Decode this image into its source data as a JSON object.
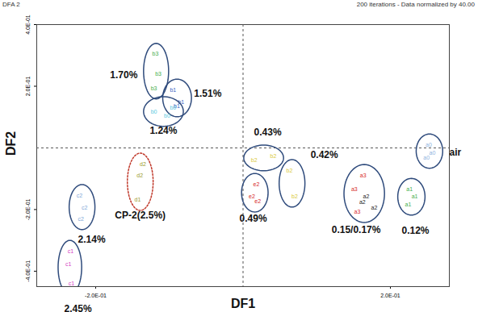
{
  "chart_data": {
    "type": "scatter",
    "title": "DFA 2",
    "subtitle": "200 iterations - Data normalized by 40.00",
    "x_label": "DF1",
    "y_label": "DF2",
    "xlim": [
      -0.28,
      0.28
    ],
    "ylim": [
      -0.45,
      0.4
    ],
    "xticks": [
      {
        "value": -0.2,
        "label": "-2.0E-01"
      },
      {
        "value": 0.2,
        "label": "2.0E-01"
      }
    ],
    "yticks": [
      {
        "value": -0.4,
        "label": "-4.0E-01"
      },
      {
        "value": -0.2,
        "label": "-2.0E-01"
      },
      {
        "value": 0.2,
        "label": "2.0E-01"
      },
      {
        "value": 0.4,
        "label": "4.0E-01"
      }
    ],
    "ref_lines": {
      "x": 0,
      "y": 0
    },
    "marker": "text",
    "series": [
      {
        "name": "air",
        "color": "#2f4b7c",
        "line_style": "solid",
        "points": [
          {
            "label": "a0",
            "x": 0.252,
            "y": 0.01,
            "color": "#8fb4e0"
          },
          {
            "label": "a0",
            "x": 0.257,
            "y": -0.016,
            "color": "#8fb4e0"
          },
          {
            "label": "a0",
            "x": 0.249,
            "y": -0.031,
            "color": "#8fb4e0"
          }
        ]
      },
      {
        "name": "0.12%",
        "color": "#2f4b7c",
        "line_style": "solid",
        "points": [
          {
            "label": "a1",
            "x": 0.226,
            "y": -0.134,
            "color": "#3fae49"
          },
          {
            "label": "a1",
            "x": 0.233,
            "y": -0.157,
            "color": "#3fae49"
          },
          {
            "label": "a1",
            "x": 0.224,
            "y": -0.183,
            "color": "#3fae49"
          }
        ]
      },
      {
        "name": "0.15/0.17%",
        "color": "#2f4b7c",
        "line_style": "solid",
        "points": [
          {
            "label": "a3",
            "x": 0.163,
            "y": -0.089,
            "color": "#d62728"
          },
          {
            "label": "a3",
            "x": 0.151,
            "y": -0.134,
            "color": "#d62728"
          },
          {
            "label": "a2",
            "x": 0.167,
            "y": -0.157,
            "color": "#222222"
          },
          {
            "label": "a2",
            "x": 0.162,
            "y": -0.175,
            "color": "#222222"
          },
          {
            "label": "a2",
            "x": 0.178,
            "y": -0.194,
            "color": "#222222"
          },
          {
            "label": "a3",
            "x": 0.155,
            "y": -0.207,
            "color": "#d62728"
          }
        ]
      },
      {
        "name": "0.42%",
        "color": "#2f4b7c",
        "line_style": "solid",
        "points": [
          {
            "label": "b2",
            "x": 0.063,
            "y": -0.073,
            "color": "#d9c93a"
          },
          {
            "label": "b2",
            "x": 0.07,
            "y": -0.157,
            "color": "#d9c93a"
          }
        ]
      },
      {
        "name": "0.43%",
        "color": "#2f4b7c",
        "line_style": "solid",
        "points": [
          {
            "label": "b2",
            "x": 0.015,
            "y": -0.039,
            "color": "#d9c93a"
          },
          {
            "label": "b2",
            "x": 0.041,
            "y": -0.026,
            "color": "#d9c93a"
          }
        ]
      },
      {
        "name": "0.49%",
        "color": "#2f4b7c",
        "line_style": "solid",
        "points": [
          {
            "label": "e2",
            "x": 0.018,
            "y": -0.118,
            "color": "#d62728"
          },
          {
            "label": "e2",
            "x": 0.012,
            "y": -0.157,
            "color": "#d62728"
          },
          {
            "label": "e2",
            "x": 0.02,
            "y": -0.173,
            "color": "#d62728"
          }
        ]
      },
      {
        "name": "CP-2(2.5%)",
        "color": "#c0392b",
        "line_style": "dotted",
        "points": [
          {
            "label": "d2",
            "x": -0.136,
            "y": -0.052,
            "color": "#9a9a2a"
          },
          {
            "label": "d2",
            "x": -0.14,
            "y": -0.089,
            "color": "#9a9a2a"
          },
          {
            "label": "d1",
            "x": -0.143,
            "y": -0.168,
            "color": "#9a9a2a"
          }
        ]
      },
      {
        "name": "2.14%",
        "color": "#2f4b7c",
        "line_style": "solid",
        "points": [
          {
            "label": "c2",
            "x": -0.222,
            "y": -0.154,
            "color": "#7fa8d8"
          },
          {
            "label": "c2",
            "x": -0.215,
            "y": -0.194,
            "color": "#7fa8d8"
          },
          {
            "label": "c2",
            "x": -0.22,
            "y": -0.23,
            "color": "#7fa8d8"
          }
        ]
      },
      {
        "name": "2.45%",
        "color": "#2f4b7c",
        "line_style": "solid",
        "points": [
          {
            "label": "c1",
            "x": -0.234,
            "y": -0.335,
            "color": "#d63fc4"
          },
          {
            "label": "c1",
            "x": -0.237,
            "y": -0.377,
            "color": "#d63fc4"
          },
          {
            "label": "c1",
            "x": -0.233,
            "y": -0.44,
            "color": "#d63fc4"
          }
        ]
      },
      {
        "name": "1.70%",
        "color": "#2f4b7c",
        "line_style": "solid",
        "points": [
          {
            "label": "b3",
            "x": -0.119,
            "y": 0.304,
            "color": "#3fae49"
          },
          {
            "label": "b3",
            "x": -0.115,
            "y": 0.241,
            "color": "#3fae49"
          },
          {
            "label": "b3",
            "x": -0.121,
            "y": 0.194,
            "color": "#3fae49"
          }
        ]
      },
      {
        "name": "1.51%",
        "color": "#2f4b7c",
        "line_style": "solid",
        "points": [
          {
            "label": "b1",
            "x": -0.095,
            "y": 0.188,
            "color": "#3b5fc0"
          },
          {
            "label": "b1",
            "x": -0.084,
            "y": 0.147,
            "color": "#3b5fc0"
          },
          {
            "label": "b1",
            "x": -0.09,
            "y": 0.136,
            "color": "#3b5fc0"
          }
        ]
      },
      {
        "name": "1.24%",
        "color": "#2f4b7c",
        "line_style": "solid",
        "points": [
          {
            "label": "b0",
            "x": -0.121,
            "y": 0.118,
            "color": "#5ac8e0"
          },
          {
            "label": "b0",
            "x": -0.103,
            "y": 0.105,
            "color": "#5ac8e0"
          },
          {
            "label": "b0",
            "x": -0.095,
            "y": 0.131,
            "color": "#5ac8e0"
          }
        ]
      }
    ]
  }
}
